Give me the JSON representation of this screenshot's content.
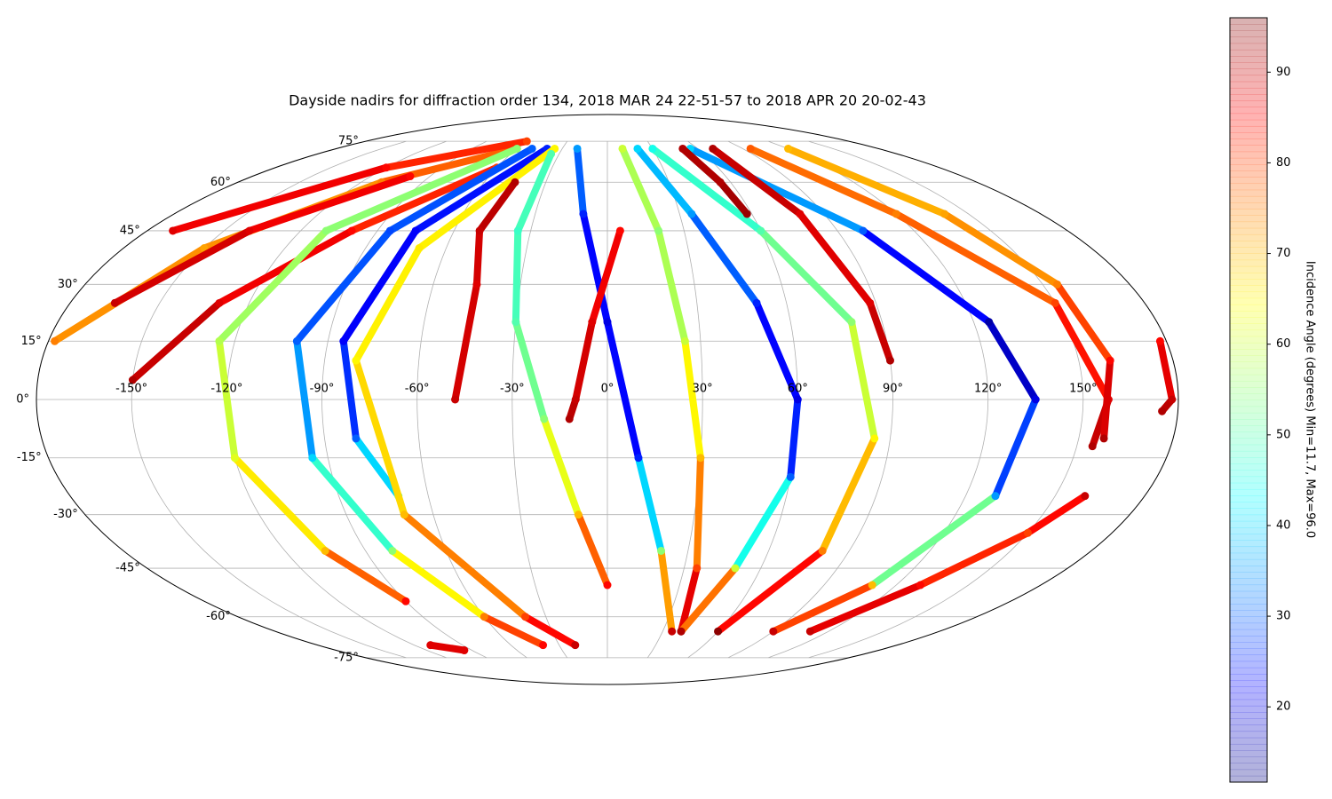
{
  "chart_data": {
    "type": "mollweide-tracks",
    "title": "Dayside nadirs for diffraction order 134, 2018 MAR 24 22-51-57 to 2018 APR 20 20-02-43",
    "xlim": [
      -180,
      180
    ],
    "ylim": [
      -90,
      90
    ],
    "xticks": [
      {
        "value": -150,
        "label": "-150°"
      },
      {
        "value": -120,
        "label": "-120°"
      },
      {
        "value": -90,
        "label": "-90°"
      },
      {
        "value": -60,
        "label": "-60°"
      },
      {
        "value": -30,
        "label": "-30°"
      },
      {
        "value": 0,
        "label": "0°"
      },
      {
        "value": 30,
        "label": "30°"
      },
      {
        "value": 60,
        "label": "60°"
      },
      {
        "value": 90,
        "label": "90°"
      },
      {
        "value": 120,
        "label": "120°"
      },
      {
        "value": 150,
        "label": "150°"
      }
    ],
    "yticks": [
      {
        "value": -75,
        "label": "-75°"
      },
      {
        "value": -60,
        "label": "-60°"
      },
      {
        "value": -45,
        "label": "-45°"
      },
      {
        "value": -30,
        "label": "-30°"
      },
      {
        "value": -15,
        "label": "-15°"
      },
      {
        "value": 0,
        "label": "0°"
      },
      {
        "value": 15,
        "label": "15°"
      },
      {
        "value": 30,
        "label": "30°"
      },
      {
        "value": 45,
        "label": "45°"
      },
      {
        "value": 60,
        "label": "60°"
      },
      {
        "value": 75,
        "label": "75°"
      }
    ],
    "grid": true,
    "colormap": "jet",
    "colorbar": {
      "label": "Incidence Angle (degrees) Min=11.7, Max=96.0",
      "clim": [
        11.7,
        96.0
      ],
      "ticks": [
        20,
        30,
        40,
        50,
        60,
        70,
        80,
        90
      ]
    },
    "tracks": [
      {
        "lon": [
          -178,
          -150,
          -110,
          -60
        ],
        "lat": [
          15,
          40,
          60,
          72
        ],
        "incidence": [
          75,
          72,
          75,
          80
        ]
      },
      {
        "lon": [
          -165,
          -140,
          -100
        ],
        "lat": [
          25,
          45,
          62
        ],
        "incidence": [
          90,
          88,
          85
        ]
      },
      {
        "lon": [
          -150,
          -130,
          -100,
          -60
        ],
        "lat": [
          5,
          25,
          45,
          65
        ],
        "incidence": [
          92,
          88,
          85,
          80
        ]
      },
      {
        "lon": [
          -170,
          -120,
          -60
        ],
        "lat": [
          45,
          65,
          75
        ],
        "incidence": [
          88,
          85,
          80
        ]
      },
      {
        "lon": [
          -60,
          -110,
          -125,
          -120,
          -105,
          -90
        ],
        "lat": [
          72,
          45,
          15,
          -15,
          -40,
          -55
        ],
        "incidence": [
          55,
          55,
          58,
          62,
          70,
          85
        ]
      },
      {
        "lon": [
          -50,
          -85,
          -100,
          -95,
          -80,
          -60,
          -40
        ],
        "lat": [
          72,
          45,
          15,
          -15,
          -40,
          -60,
          -70
        ],
        "incidence": [
          30,
          28,
          30,
          40,
          55,
          75,
          85
        ]
      },
      {
        "lon": [
          -40,
          -75,
          -85,
          -80,
          -70
        ],
        "lat": [
          72,
          45,
          15,
          -10,
          -25
        ],
        "incidence": [
          25,
          22,
          22,
          30,
          50
        ]
      },
      {
        "lon": [
          -35,
          -70,
          -80,
          -70,
          -40,
          -20
        ],
        "lat": [
          72,
          40,
          10,
          -30,
          -60,
          -70
        ],
        "incidence": [
          65,
          66,
          65,
          70,
          80,
          90
        ]
      },
      {
        "lon": [
          -45,
          -50,
          -45,
          -48
        ],
        "lat": [
          60,
          45,
          30,
          0
        ],
        "incidence": [
          92,
          90,
          88,
          90
        ]
      },
      {
        "lon": [
          -35,
          -35,
          -30,
          -20,
          -10,
          0
        ],
        "lat": [
          70,
          45,
          20,
          -5,
          -30,
          -50
        ],
        "incidence": [
          50,
          48,
          50,
          55,
          70,
          85
        ]
      },
      {
        "lon": [
          -20,
          -10,
          0,
          10,
          20,
          35
        ],
        "lat": [
          72,
          50,
          20,
          -15,
          -40,
          -65
        ],
        "incidence": [
          35,
          25,
          20,
          25,
          55,
          90
        ]
      },
      {
        "lon": [
          10,
          20,
          25,
          30,
          35,
          40
        ],
        "lat": [
          72,
          45,
          15,
          -15,
          -45,
          -65
        ],
        "incidence": [
          60,
          55,
          60,
          70,
          80,
          95
        ]
      },
      {
        "lon": [
          20,
          35,
          50,
          60,
          60,
          50,
          40
        ],
        "lat": [
          72,
          50,
          25,
          0,
          -20,
          -45,
          -65
        ],
        "incidence": [
          40,
          35,
          25,
          20,
          30,
          60,
          92
        ]
      },
      {
        "lon": [
          30,
          60,
          80,
          85,
          80,
          60
        ],
        "lat": [
          72,
          45,
          20,
          -10,
          -40,
          -65
        ],
        "incidence": [
          45,
          50,
          55,
          65,
          75,
          95
        ]
      },
      {
        "lon": [
          55,
          100,
          125,
          135,
          130,
          110,
          90
        ],
        "lat": [
          72,
          45,
          20,
          0,
          -25,
          -50,
          -65
        ],
        "incidence": [
          40,
          30,
          15,
          20,
          35,
          70,
          90
        ]
      },
      {
        "lon": [
          95,
          120,
          150,
          158,
          155
        ],
        "lat": [
          72,
          50,
          25,
          0,
          -12
        ],
        "incidence": [
          78,
          75,
          80,
          88,
          92
        ]
      },
      {
        "lon": [
          120,
          140,
          155,
          160,
          158
        ],
        "lat": [
          72,
          50,
          30,
          10,
          -10
        ],
        "incidence": [
          70,
          72,
          75,
          85,
          92
        ]
      },
      {
        "lon": [
          50,
          55,
          58
        ],
        "lat": [
          72,
          60,
          50
        ],
        "incidence": [
          92,
          92,
          94
        ]
      },
      {
        "lon": [
          70,
          80,
          88,
          90
        ],
        "lat": [
          72,
          50,
          25,
          10
        ],
        "incidence": [
          92,
          88,
          88,
          92
        ]
      },
      {
        "lon": [
          178,
          178,
          175
        ],
        "lat": [
          15,
          0,
          -3
        ],
        "incidence": [
          85,
          90,
          92
        ]
      },
      {
        "lon": [
          5,
          -5,
          -10,
          -12
        ],
        "lat": [
          45,
          20,
          0,
          -5
        ],
        "incidence": [
          85,
          88,
          90,
          92
        ]
      },
      {
        "lon": [
          -110,
          -95
        ],
        "lat": [
          -70,
          -72
        ],
        "incidence": [
          88,
          88
        ]
      },
      {
        "lon": [
          110,
          130,
          150,
          160
        ],
        "lat": [
          -65,
          -50,
          -35,
          -25
        ],
        "incidence": [
          90,
          85,
          80,
          90
        ]
      }
    ]
  }
}
